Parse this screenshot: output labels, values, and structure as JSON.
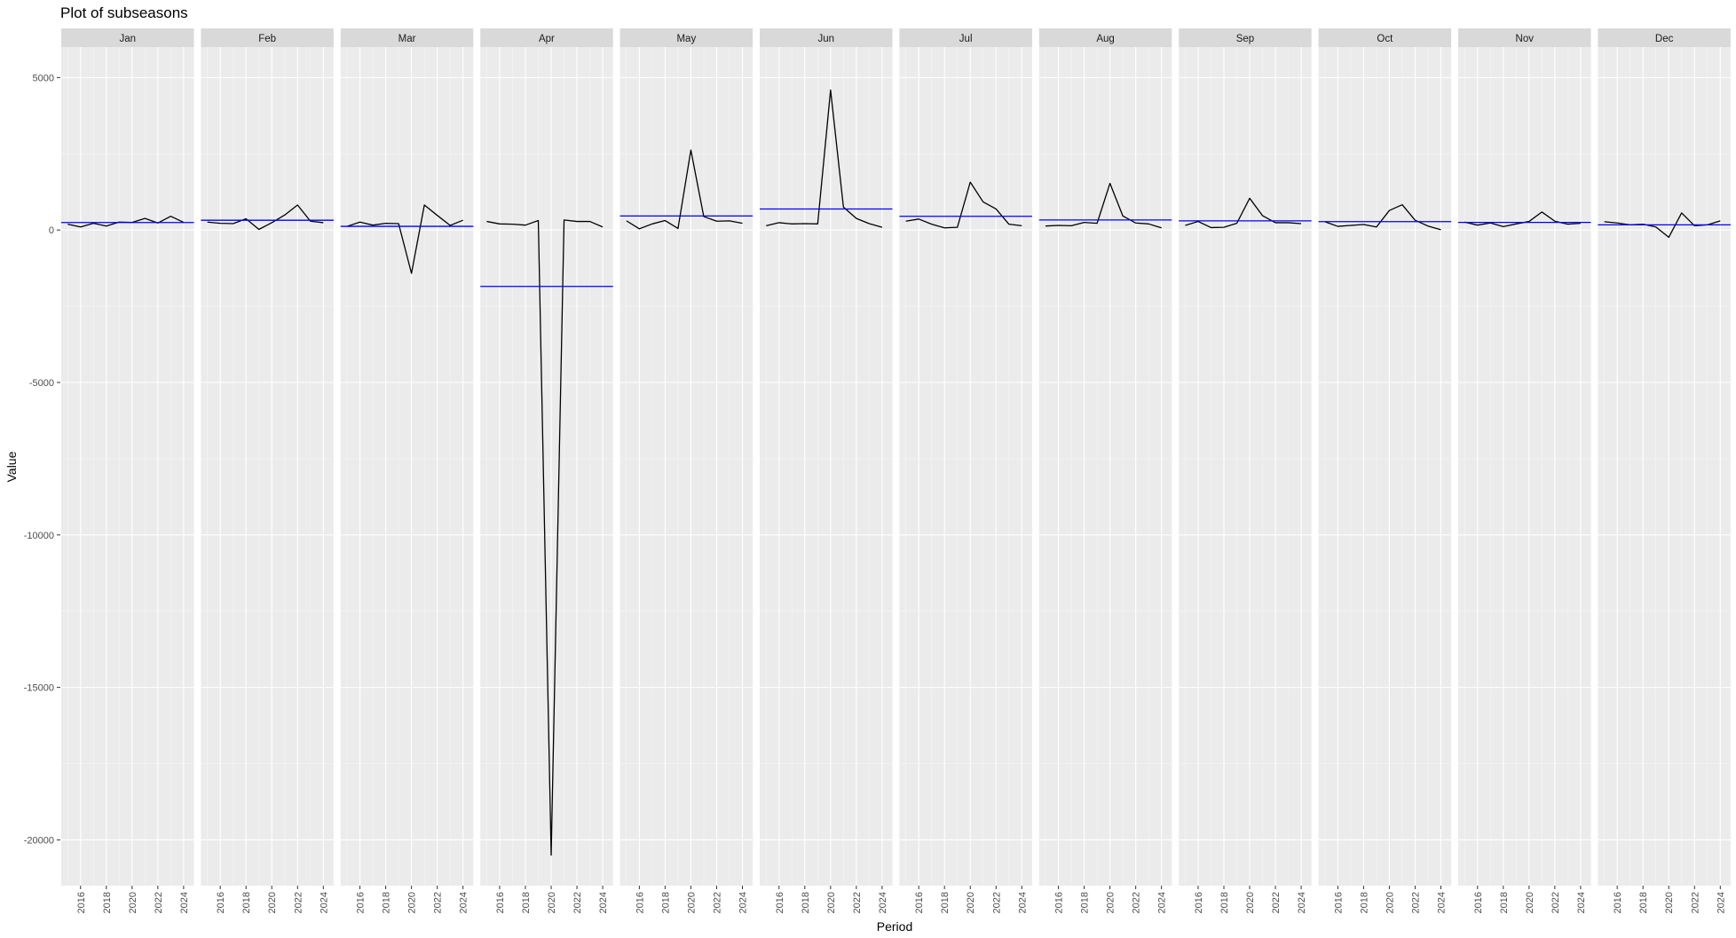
{
  "chart_data": {
    "type": "line",
    "title": "Plot of subseasons",
    "xlabel": "Period",
    "ylabel": "Value",
    "ylim": [
      -21500,
      6000
    ],
    "y_ticks": [
      5000,
      0,
      -5000,
      -10000,
      -15000,
      -20000
    ],
    "x_range": [
      2014.5,
      2024.8
    ],
    "x_ticks": [
      2016,
      2018,
      2020,
      2022,
      2024
    ],
    "x_tick_labels": [
      "2016",
      "2018",
      "2020",
      "2022",
      "2024"
    ],
    "y_tick_labels": [
      "5000",
      "0",
      "-5000",
      "-10000",
      "-15000",
      "-20000"
    ],
    "grid": true,
    "colors": {
      "series": "#000000",
      "mean": "#0000ff",
      "panel_bg": "#ebebeb",
      "strip_bg": "#d9d9d9"
    },
    "panels": [
      {
        "name": "Jan",
        "x": [
          2015,
          2016,
          2017,
          2018,
          2019,
          2020,
          2021,
          2022,
          2023,
          2024
        ],
        "values": [
          190,
          100,
          220,
          130,
          260,
          250,
          380,
          230,
          450,
          250
        ],
        "mean": 245
      },
      {
        "name": "Feb",
        "x": [
          2015,
          2016,
          2017,
          2018,
          2019,
          2020,
          2021,
          2022,
          2023,
          2024
        ],
        "values": [
          260,
          220,
          210,
          370,
          20,
          240,
          490,
          820,
          290,
          240
        ],
        "mean": 320
      },
      {
        "name": "Mar",
        "x": [
          2015,
          2016,
          2017,
          2018,
          2019,
          2020,
          2021,
          2022,
          2023,
          2024
        ],
        "values": [
          120,
          260,
          160,
          220,
          210,
          -1420,
          820,
          480,
          150,
          320
        ],
        "mean": 120
      },
      {
        "name": "Apr",
        "x": [
          2015,
          2016,
          2017,
          2018,
          2019,
          2020,
          2021,
          2022,
          2023,
          2024
        ],
        "values": [
          280,
          200,
          190,
          160,
          310,
          -20500,
          330,
          280,
          280,
          100
        ],
        "mean": -1850
      },
      {
        "name": "May",
        "x": [
          2015,
          2016,
          2017,
          2018,
          2019,
          2020,
          2021,
          2022,
          2023,
          2024
        ],
        "values": [
          300,
          40,
          200,
          310,
          50,
          2620,
          440,
          290,
          300,
          220
        ],
        "mean": 460
      },
      {
        "name": "Jun",
        "x": [
          2015,
          2016,
          2017,
          2018,
          2019,
          2020,
          2021,
          2022,
          2023,
          2024
        ],
        "values": [
          140,
          240,
          200,
          210,
          200,
          4590,
          750,
          380,
          210,
          90
        ],
        "mean": 690
      },
      {
        "name": "Jul",
        "x": [
          2015,
          2016,
          2017,
          2018,
          2019,
          2020,
          2021,
          2022,
          2023,
          2024
        ],
        "values": [
          290,
          360,
          190,
          70,
          90,
          1570,
          920,
          690,
          190,
          140
        ],
        "mean": 450
      },
      {
        "name": "Aug",
        "x": [
          2015,
          2016,
          2017,
          2018,
          2019,
          2020,
          2021,
          2022,
          2023,
          2024
        ],
        "values": [
          130,
          150,
          140,
          250,
          220,
          1530,
          460,
          230,
          200,
          70
        ],
        "mean": 330
      },
      {
        "name": "Sep",
        "x": [
          2015,
          2016,
          2017,
          2018,
          2019,
          2020,
          2021,
          2022,
          2023,
          2024
        ],
        "values": [
          150,
          280,
          80,
          90,
          220,
          1040,
          470,
          240,
          240,
          210
        ],
        "mean": 300
      },
      {
        "name": "Oct",
        "x": [
          2015,
          2016,
          2017,
          2018,
          2019,
          2020,
          2021,
          2022,
          2023,
          2024
        ],
        "values": [
          270,
          120,
          150,
          180,
          100,
          640,
          830,
          320,
          130,
          10
        ],
        "mean": 275
      },
      {
        "name": "Nov",
        "x": [
          2015,
          2016,
          2017,
          2018,
          2019,
          2020,
          2021,
          2022,
          2023,
          2024
        ],
        "values": [
          260,
          160,
          230,
          110,
          200,
          280,
          590,
          290,
          190,
          220
        ],
        "mean": 250
      },
      {
        "name": "Dec",
        "x": [
          2015,
          2016,
          2017,
          2018,
          2019,
          2020,
          2021,
          2022,
          2023,
          2024
        ],
        "values": [
          270,
          230,
          170,
          190,
          100,
          -240,
          560,
          140,
          170,
          300
        ],
        "mean": 170
      }
    ]
  }
}
